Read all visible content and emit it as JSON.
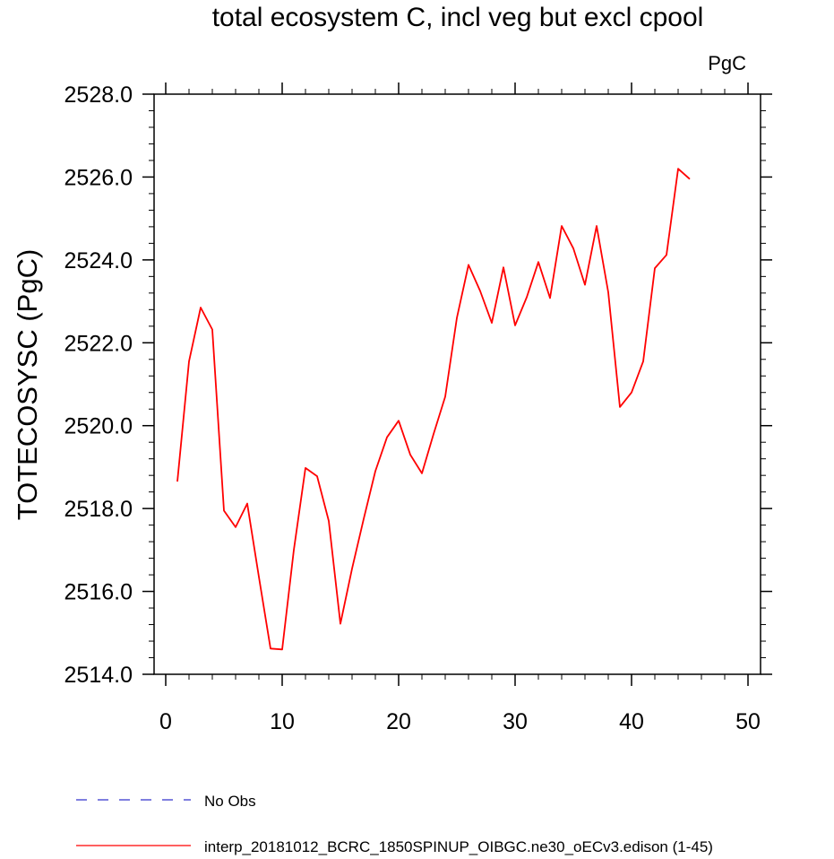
{
  "chart_data": {
    "type": "line",
    "title": "total ecosystem C, incl veg but excl cpool",
    "units": "PgC",
    "xlabel": "",
    "ylabel": "TOTECOSYSC  (PgC)",
    "xlim": [
      0,
      50
    ],
    "ylim": [
      2514,
      2528
    ],
    "x_ticks": [
      0,
      10,
      20,
      30,
      40,
      50
    ],
    "x_tick_labels": [
      "0",
      "10",
      "20",
      "30",
      "40",
      "50"
    ],
    "y_ticks": [
      2514,
      2516,
      2518,
      2520,
      2522,
      2524,
      2526,
      2528
    ],
    "y_tick_labels": [
      "2514.0",
      "2516.0",
      "2518.0",
      "2520.0",
      "2522.0",
      "2524.0",
      "2526.0",
      "2528.0"
    ],
    "grid": false,
    "legend_position": "bottom",
    "series": [
      {
        "name": "No Obs",
        "color": "#3333cc",
        "dash": true,
        "x": [],
        "values": []
      },
      {
        "name": "interp_20181012_BCRC_1850SPINUP_OIBGC.ne30_oECv3.edison (1-45)",
        "color": "#ff0000",
        "dash": false,
        "x": [
          1,
          2,
          3,
          4,
          5,
          6,
          7,
          8,
          9,
          10,
          11,
          12,
          13,
          14,
          15,
          16,
          17,
          18,
          19,
          20,
          21,
          22,
          23,
          24,
          25,
          26,
          27,
          28,
          29,
          30,
          31,
          32,
          33,
          34,
          35,
          36,
          37,
          38,
          39,
          40,
          41,
          42,
          43,
          44,
          45
        ],
        "values": [
          2518.65,
          2521.55,
          2522.85,
          2522.32,
          2517.95,
          2517.55,
          2518.12,
          2516.35,
          2514.62,
          2514.6,
          2517.0,
          2518.98,
          2518.78,
          2517.7,
          2515.22,
          2516.55,
          2517.75,
          2518.9,
          2519.72,
          2520.12,
          2519.3,
          2518.85,
          2519.8,
          2520.7,
          2522.6,
          2523.88,
          2523.25,
          2522.48,
          2523.82,
          2522.42,
          2523.1,
          2523.95,
          2523.08,
          2524.82,
          2524.28,
          2523.4,
          2524.82,
          2523.22,
          2520.45,
          2520.8,
          2521.55,
          2523.8,
          2524.12,
          2526.2,
          2525.95
        ]
      }
    ]
  }
}
